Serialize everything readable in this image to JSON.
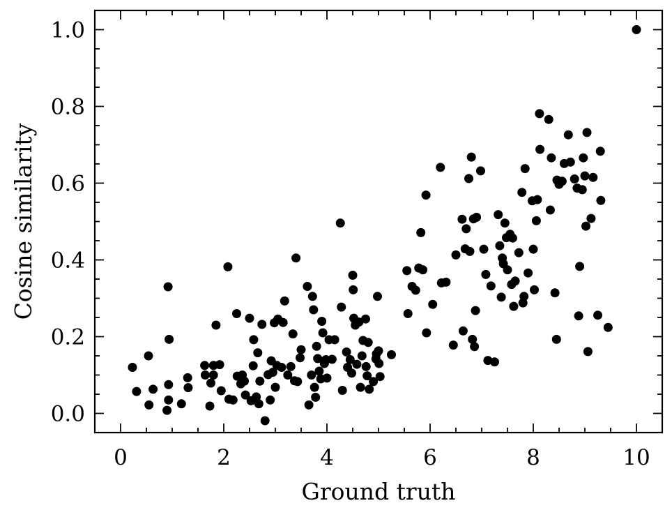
{
  "chart_data": {
    "type": "scatter",
    "xlabel": "Ground truth",
    "ylabel": "Cosine similarity",
    "xlim": [
      -0.5,
      10.5
    ],
    "ylim": [
      -0.05,
      1.05
    ],
    "xticks": [
      0,
      2,
      4,
      6,
      8,
      10
    ],
    "xtick_labels": [
      "0",
      "2",
      "4",
      "6",
      "8",
      "10"
    ],
    "yticks": [
      0.0,
      0.2,
      0.4,
      0.6,
      0.8,
      1.0
    ],
    "ytick_labels": [
      "0.0",
      "0.2",
      "0.4",
      "0.6",
      "0.8",
      "1.0"
    ],
    "grid": false,
    "marker_color": "#000000",
    "points": [
      [
        10.0,
        1.0
      ],
      [
        0.23,
        0.12
      ],
      [
        0.31,
        0.057
      ],
      [
        0.54,
        0.15
      ],
      [
        0.55,
        0.022
      ],
      [
        0.63,
        0.063
      ],
      [
        0.9,
        0.008
      ],
      [
        0.92,
        0.33
      ],
      [
        0.93,
        0.075
      ],
      [
        0.93,
        0.035
      ],
      [
        0.94,
        0.193
      ],
      [
        1.18,
        0.025
      ],
      [
        1.3,
        0.093
      ],
      [
        1.31,
        0.067
      ],
      [
        1.63,
        0.125
      ],
      [
        1.64,
        0.1
      ],
      [
        1.73,
        0.019
      ],
      [
        1.75,
        0.079
      ],
      [
        1.8,
        0.1
      ],
      [
        1.8,
        0.125
      ],
      [
        1.85,
        0.23
      ],
      [
        1.92,
        0.127
      ],
      [
        1.95,
        0.059
      ],
      [
        2.08,
        0.382
      ],
      [
        2.1,
        0.037
      ],
      [
        2.18,
        0.035
      ],
      [
        2.25,
        0.26
      ],
      [
        2.26,
        0.097
      ],
      [
        2.33,
        0.077
      ],
      [
        2.36,
        0.1
      ],
      [
        2.4,
        0.084
      ],
      [
        2.42,
        0.048
      ],
      [
        2.5,
        0.248
      ],
      [
        2.53,
        0.033
      ],
      [
        2.57,
        0.124
      ],
      [
        2.58,
        0.192
      ],
      [
        2.63,
        0.043
      ],
      [
        2.66,
        0.158
      ],
      [
        2.68,
        0.025
      ],
      [
        2.7,
        0.084
      ],
      [
        2.74,
        0.232
      ],
      [
        2.8,
        -0.019
      ],
      [
        2.86,
        0.101
      ],
      [
        2.9,
        0.035
      ],
      [
        2.92,
        0.137
      ],
      [
        2.95,
        0.107
      ],
      [
        2.98,
        0.236
      ],
      [
        3.0,
        0.068
      ],
      [
        3.03,
        0.125
      ],
      [
        3.05,
        0.246
      ],
      [
        3.12,
        0.12
      ],
      [
        3.15,
        0.237
      ],
      [
        3.18,
        0.293
      ],
      [
        3.24,
        0.1
      ],
      [
        3.3,
        0.122
      ],
      [
        3.34,
        0.207
      ],
      [
        3.37,
        0.085
      ],
      [
        3.4,
        0.405
      ],
      [
        3.43,
        0.083
      ],
      [
        3.48,
        0.145
      ],
      [
        3.5,
        0.166
      ],
      [
        3.62,
        0.331
      ],
      [
        3.65,
        0.022
      ],
      [
        3.7,
        0.1
      ],
      [
        3.72,
        0.305
      ],
      [
        3.74,
        0.27
      ],
      [
        3.76,
        0.068
      ],
      [
        3.78,
        0.042
      ],
      [
        3.8,
        0.175
      ],
      [
        3.82,
        0.143
      ],
      [
        3.85,
        0.11
      ],
      [
        3.88,
        0.09
      ],
      [
        3.9,
        0.24
      ],
      [
        3.92,
        0.21
      ],
      [
        3.95,
        0.13
      ],
      [
        3.98,
        0.14
      ],
      [
        4.0,
        0.092
      ],
      [
        4.04,
        0.192
      ],
      [
        4.1,
        0.141
      ],
      [
        4.15,
        0.192
      ],
      [
        4.26,
        0.496
      ],
      [
        4.28,
        0.277
      ],
      [
        4.3,
        0.06
      ],
      [
        4.38,
        0.16
      ],
      [
        4.4,
        0.12
      ],
      [
        4.45,
        0.14
      ],
      [
        4.48,
        0.105
      ],
      [
        4.5,
        0.36
      ],
      [
        4.51,
        0.322
      ],
      [
        4.52,
        0.248
      ],
      [
        4.55,
        0.23
      ],
      [
        4.58,
        0.128
      ],
      [
        4.62,
        0.238
      ],
      [
        4.65,
        0.068
      ],
      [
        4.68,
        0.15
      ],
      [
        4.7,
        0.19
      ],
      [
        4.75,
        0.246
      ],
      [
        4.76,
        0.122
      ],
      [
        4.78,
        0.098
      ],
      [
        4.8,
        0.185
      ],
      [
        4.82,
        0.063
      ],
      [
        4.9,
        0.083
      ],
      [
        4.95,
        0.142
      ],
      [
        4.96,
        0.155
      ],
      [
        4.98,
        0.305
      ],
      [
        5.0,
        0.163
      ],
      [
        5.01,
        0.13
      ],
      [
        5.03,
        0.096
      ],
      [
        5.25,
        0.153
      ],
      [
        5.55,
        0.372
      ],
      [
        5.57,
        0.26
      ],
      [
        5.65,
        0.331
      ],
      [
        5.72,
        0.321
      ],
      [
        5.78,
        0.379
      ],
      [
        5.82,
        0.471
      ],
      [
        5.86,
        0.374
      ],
      [
        5.92,
        0.569
      ],
      [
        5.93,
        0.21
      ],
      [
        6.05,
        0.284
      ],
      [
        6.2,
        0.641
      ],
      [
        6.22,
        0.34
      ],
      [
        6.31,
        0.342
      ],
      [
        6.45,
        0.178
      ],
      [
        6.5,
        0.413
      ],
      [
        6.62,
        0.506
      ],
      [
        6.64,
        0.215
      ],
      [
        6.68,
        0.429
      ],
      [
        6.7,
        0.481
      ],
      [
        6.75,
        0.612
      ],
      [
        6.77,
        0.422
      ],
      [
        6.8,
        0.668
      ],
      [
        6.82,
        0.193
      ],
      [
        6.84,
        0.507
      ],
      [
        6.86,
        0.174
      ],
      [
        6.88,
        0.268
      ],
      [
        6.9,
        0.511
      ],
      [
        6.98,
        0.632
      ],
      [
        7.04,
        0.428
      ],
      [
        7.08,
        0.362
      ],
      [
        7.12,
        0.138
      ],
      [
        7.18,
        0.332
      ],
      [
        7.25,
        0.134
      ],
      [
        7.32,
        0.518
      ],
      [
        7.35,
        0.437
      ],
      [
        7.38,
        0.303
      ],
      [
        7.4,
        0.405
      ],
      [
        7.42,
        0.39
      ],
      [
        7.45,
        0.496
      ],
      [
        7.48,
        0.458
      ],
      [
        7.5,
        0.374
      ],
      [
        7.55,
        0.467
      ],
      [
        7.58,
        0.336
      ],
      [
        7.6,
        0.457
      ],
      [
        7.62,
        0.279
      ],
      [
        7.65,
        0.345
      ],
      [
        7.72,
        0.419
      ],
      [
        7.78,
        0.576
      ],
      [
        7.8,
        0.288
      ],
      [
        7.82,
        0.305
      ],
      [
        7.84,
        0.638
      ],
      [
        7.9,
        0.366
      ],
      [
        7.98,
        0.554
      ],
      [
        8.0,
        0.428
      ],
      [
        8.02,
        0.322
      ],
      [
        8.06,
        0.502
      ],
      [
        8.08,
        0.557
      ],
      [
        8.12,
        0.781
      ],
      [
        8.13,
        0.688
      ],
      [
        8.3,
        0.766
      ],
      [
        8.33,
        0.53
      ],
      [
        8.35,
        0.666
      ],
      [
        8.42,
        0.314
      ],
      [
        8.45,
        0.193
      ],
      [
        8.46,
        0.608
      ],
      [
        8.5,
        0.597
      ],
      [
        8.56,
        0.605
      ],
      [
        8.6,
        0.651
      ],
      [
        8.68,
        0.726
      ],
      [
        8.72,
        0.655
      ],
      [
        8.8,
        0.611
      ],
      [
        8.85,
        0.587
      ],
      [
        8.88,
        0.254
      ],
      [
        8.9,
        0.383
      ],
      [
        8.95,
        0.583
      ],
      [
        8.97,
        0.666
      ],
      [
        9.0,
        0.619
      ],
      [
        9.02,
        0.488
      ],
      [
        9.04,
        0.732
      ],
      [
        9.06,
        0.161
      ],
      [
        9.12,
        0.508
      ],
      [
        9.16,
        0.615
      ],
      [
        9.25,
        0.256
      ],
      [
        9.3,
        0.683
      ],
      [
        9.31,
        0.555
      ],
      [
        9.45,
        0.224
      ]
    ]
  }
}
